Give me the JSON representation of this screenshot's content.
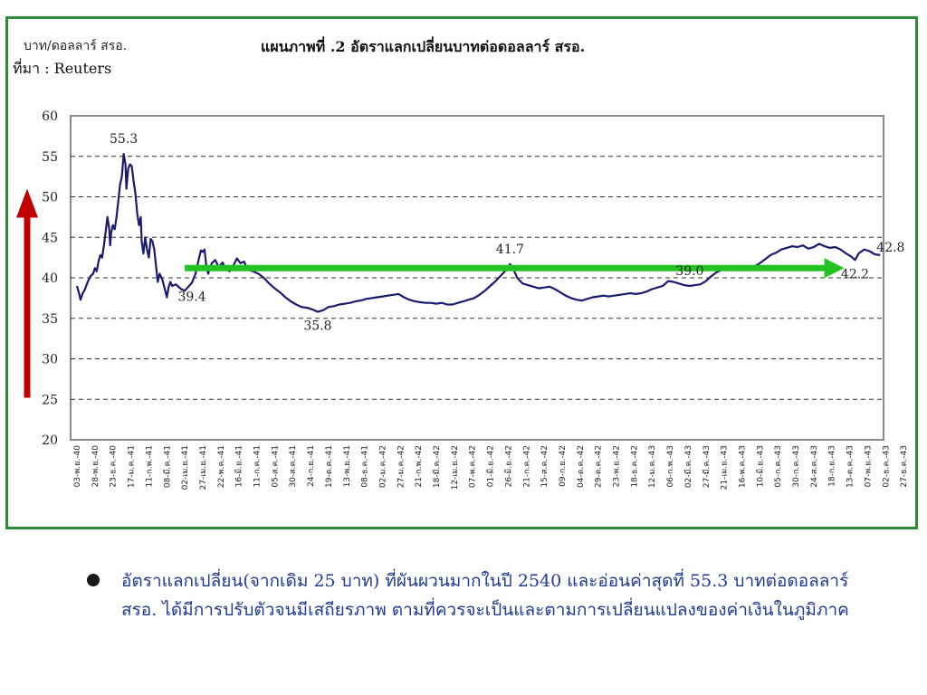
{
  "header": {
    "unit_label": "บาท/ดอลลาร์ สรอ.",
    "source_label": "ที่มา : Reuters",
    "title": "แผนภาพที่ .2 อัตราแลกเปลี่ยนบาทต่อดอลลาร์ สรอ."
  },
  "chart_data": {
    "type": "line",
    "title": "แผนภาพที่ .2 อัตราแลกเปลี่ยนบาทต่อดอลลาร์ สรอ.",
    "ylabel": "บาท/ดอลลาร์ สรอ.",
    "xlabel": "",
    "ylim": [
      20,
      60
    ],
    "yticks": [
      20,
      25,
      30,
      35,
      40,
      45,
      50,
      55,
      60
    ],
    "grid": "horizontal-dashed",
    "categories": [
      "03-พ.ย.-40",
      "28-พ.ย.-40",
      "23-ธ.ค.-40",
      "17-ม.ค.-41",
      "11-ก.พ.-41",
      "08-มี.ค.-41",
      "02-เม.ย.-41",
      "27-เม.ย.-41",
      "22-พ.ค.-41",
      "16-มิ.ย.-41",
      "11-ก.ค.-41",
      "05-ส.ค.-41",
      "30-ส.ค.-41",
      "24-ก.ย.-41",
      "19-ต.ค.-41",
      "13-พ.ย.-41",
      "08-ธ.ค.-41",
      "02-ม.ค.-42",
      "27-ม.ค.-42",
      "21-ก.พ.-42",
      "18-มี.ค.-42",
      "12-เม.ย.-42",
      "07-พ.ค.-42",
      "01-มิ.ย.-42",
      "26-มิ.ย.-42",
      "21-ก.ค.-42",
      "15-ส.ค.-42",
      "09-ก.ย.-42",
      "04-ต.ค.-42",
      "29-ต.ค.-42",
      "23-พ.ย.-42",
      "18-ธ.ค.-42",
      "12-ม.ค.-43",
      "06-ก.พ.-43",
      "02-มี.ค.-43",
      "27-มี.ค.-43",
      "21-เม.ย.-43",
      "16-พ.ค.-43",
      "10-มิ.ย.-43",
      "05-ก.ค.-43",
      "30-ก.ค.-43",
      "24-ส.ค.-43",
      "18-ก.ย.-43",
      "13-ต.ค.-43",
      "07-พ.ย.-43",
      "02-ธ.ค.-43",
      "27-ธ.ค.-43"
    ],
    "series": [
      {
        "values": [
          [
            0,
            39.0
          ],
          [
            0.1,
            38.2
          ],
          [
            0.2,
            37.3
          ],
          [
            0.3,
            38.0
          ],
          [
            0.45,
            38.6
          ],
          [
            0.6,
            39.5
          ],
          [
            0.75,
            40.2
          ],
          [
            0.9,
            40.5
          ],
          [
            1.0,
            41.2
          ],
          [
            1.1,
            40.8
          ],
          [
            1.2,
            42.0
          ],
          [
            1.3,
            42.8
          ],
          [
            1.4,
            42.5
          ],
          [
            1.5,
            44.0
          ],
          [
            1.6,
            45.8
          ],
          [
            1.7,
            47.5
          ],
          [
            1.8,
            46.0
          ],
          [
            1.85,
            44.0
          ],
          [
            1.9,
            45.5
          ],
          [
            2.0,
            46.5
          ],
          [
            2.1,
            46.0
          ],
          [
            2.2,
            47.5
          ],
          [
            2.3,
            49.5
          ],
          [
            2.4,
            51.5
          ],
          [
            2.5,
            52.5
          ],
          [
            2.6,
            55.3
          ],
          [
            2.7,
            54.0
          ],
          [
            2.75,
            51.0
          ],
          [
            2.85,
            53.5
          ],
          [
            2.95,
            54.0
          ],
          [
            3.05,
            53.8
          ],
          [
            3.15,
            52.0
          ],
          [
            3.25,
            50.5
          ],
          [
            3.35,
            48.0
          ],
          [
            3.45,
            46.5
          ],
          [
            3.55,
            47.5
          ],
          [
            3.6,
            44.5
          ],
          [
            3.7,
            43.0
          ],
          [
            3.8,
            45.0
          ],
          [
            3.9,
            43.5
          ],
          [
            4.0,
            42.5
          ],
          [
            4.1,
            44.8
          ],
          [
            4.2,
            44.5
          ],
          [
            4.3,
            43.5
          ],
          [
            4.4,
            41.5
          ],
          [
            4.5,
            39.5
          ],
          [
            4.6,
            40.5
          ],
          [
            4.75,
            39.8
          ],
          [
            4.9,
            38.5
          ],
          [
            5.0,
            37.6
          ],
          [
            5.1,
            38.8
          ],
          [
            5.2,
            39.5
          ],
          [
            5.3,
            39.0
          ],
          [
            5.5,
            39.2
          ],
          [
            5.8,
            38.6
          ],
          [
            6.0,
            38.4
          ],
          [
            6.2,
            38.9
          ],
          [
            6.4,
            39.4
          ],
          [
            6.6,
            40.5
          ],
          [
            6.8,
            42.5
          ],
          [
            6.9,
            43.4
          ],
          [
            7.0,
            43.2
          ],
          [
            7.1,
            43.5
          ],
          [
            7.2,
            41.5
          ],
          [
            7.3,
            40.5
          ],
          [
            7.5,
            41.8
          ],
          [
            7.7,
            42.2
          ],
          [
            7.9,
            41.3
          ],
          [
            8.1,
            41.9
          ],
          [
            8.3,
            41.0
          ],
          [
            8.5,
            40.8
          ],
          [
            8.7,
            41.5
          ],
          [
            8.9,
            42.4
          ],
          [
            9.1,
            41.8
          ],
          [
            9.3,
            42.0
          ],
          [
            9.5,
            41.0
          ],
          [
            9.8,
            40.8
          ],
          [
            10.1,
            40.5
          ],
          [
            10.4,
            40.0
          ],
          [
            10.7,
            39.3
          ],
          [
            11.0,
            38.7
          ],
          [
            11.3,
            38.2
          ],
          [
            11.6,
            37.6
          ],
          [
            11.9,
            37.1
          ],
          [
            12.2,
            36.7
          ],
          [
            12.5,
            36.4
          ],
          [
            12.8,
            36.3
          ],
          [
            13.1,
            36.1
          ],
          [
            13.4,
            35.8
          ],
          [
            13.7,
            36.0
          ],
          [
            14.0,
            36.4
          ],
          [
            14.3,
            36.5
          ],
          [
            14.6,
            36.7
          ],
          [
            14.9,
            36.8
          ],
          [
            15.2,
            36.9
          ],
          [
            15.5,
            37.1
          ],
          [
            15.8,
            37.2
          ],
          [
            16.1,
            37.4
          ],
          [
            16.4,
            37.5
          ],
          [
            16.7,
            37.6
          ],
          [
            17.0,
            37.7
          ],
          [
            17.3,
            37.8
          ],
          [
            17.6,
            37.9
          ],
          [
            17.9,
            38.0
          ],
          [
            18.2,
            37.6
          ],
          [
            18.5,
            37.3
          ],
          [
            18.8,
            37.1
          ],
          [
            19.1,
            37.0
          ],
          [
            19.4,
            36.9
          ],
          [
            19.7,
            36.9
          ],
          [
            20.0,
            36.8
          ],
          [
            20.3,
            36.9
          ],
          [
            20.6,
            36.7
          ],
          [
            20.9,
            36.7
          ],
          [
            21.2,
            36.9
          ],
          [
            21.5,
            37.1
          ],
          [
            21.8,
            37.3
          ],
          [
            22.1,
            37.5
          ],
          [
            22.4,
            37.9
          ],
          [
            22.7,
            38.4
          ],
          [
            23.0,
            39.0
          ],
          [
            23.3,
            39.6
          ],
          [
            23.6,
            40.3
          ],
          [
            23.9,
            41.0
          ],
          [
            24.1,
            41.7
          ],
          [
            24.3,
            41.0
          ],
          [
            24.5,
            40.0
          ],
          [
            24.8,
            39.3
          ],
          [
            25.1,
            39.1
          ],
          [
            25.4,
            38.9
          ],
          [
            25.7,
            38.7
          ],
          [
            26.0,
            38.8
          ],
          [
            26.3,
            38.9
          ],
          [
            26.6,
            38.6
          ],
          [
            26.9,
            38.2
          ],
          [
            27.2,
            37.8
          ],
          [
            27.5,
            37.5
          ],
          [
            27.8,
            37.3
          ],
          [
            28.1,
            37.2
          ],
          [
            28.4,
            37.4
          ],
          [
            28.7,
            37.6
          ],
          [
            29.0,
            37.7
          ],
          [
            29.3,
            37.8
          ],
          [
            29.6,
            37.7
          ],
          [
            29.9,
            37.8
          ],
          [
            30.2,
            37.9
          ],
          [
            30.5,
            38.0
          ],
          [
            30.8,
            38.1
          ],
          [
            31.1,
            38.0
          ],
          [
            31.4,
            38.1
          ],
          [
            31.7,
            38.3
          ],
          [
            32.0,
            38.6
          ],
          [
            32.3,
            38.8
          ],
          [
            32.6,
            39.0
          ],
          [
            32.9,
            39.6
          ],
          [
            33.2,
            39.5
          ],
          [
            33.5,
            39.3
          ],
          [
            33.8,
            39.1
          ],
          [
            34.1,
            39.0
          ],
          [
            34.4,
            39.1
          ],
          [
            34.7,
            39.2
          ],
          [
            35.0,
            39.6
          ],
          [
            35.3,
            40.2
          ],
          [
            35.6,
            40.7
          ],
          [
            35.9,
            41.0
          ],
          [
            36.2,
            41.2
          ],
          [
            36.5,
            41.4
          ],
          [
            36.8,
            41.2
          ],
          [
            37.1,
            41.0
          ],
          [
            37.4,
            41.1
          ],
          [
            37.7,
            41.4
          ],
          [
            38.0,
            41.8
          ],
          [
            38.3,
            42.3
          ],
          [
            38.6,
            42.8
          ],
          [
            38.9,
            43.1
          ],
          [
            39.2,
            43.5
          ],
          [
            39.5,
            43.7
          ],
          [
            39.8,
            43.9
          ],
          [
            40.1,
            43.8
          ],
          [
            40.4,
            44.0
          ],
          [
            40.7,
            43.6
          ],
          [
            41.0,
            43.8
          ],
          [
            41.3,
            44.2
          ],
          [
            41.6,
            43.9
          ],
          [
            41.9,
            43.7
          ],
          [
            42.2,
            43.8
          ],
          [
            42.5,
            43.5
          ],
          [
            42.8,
            43.0
          ],
          [
            43.1,
            42.6
          ],
          [
            43.3,
            42.2
          ],
          [
            43.5,
            43.0
          ],
          [
            43.8,
            43.5
          ],
          [
            44.1,
            43.3
          ],
          [
            44.4,
            42.9
          ],
          [
            44.7,
            42.8
          ]
        ]
      }
    ],
    "annotations": [
      {
        "text": "55.3",
        "x": 2.6,
        "y": 55.3,
        "position": "above"
      },
      {
        "text": "39.4",
        "x": 6.4,
        "y": 39.4,
        "position": "below"
      },
      {
        "text": "35.8",
        "x": 13.4,
        "y": 35.8,
        "position": "below"
      },
      {
        "text": "41.7",
        "x": 24.1,
        "y": 41.7,
        "position": "above"
      },
      {
        "text": "39.0",
        "x": 34.1,
        "y": 39.0,
        "position": "above"
      },
      {
        "text": "42.2",
        "x": 43.3,
        "y": 42.2,
        "position": "below"
      },
      {
        "text": "42.8",
        "x": 44.7,
        "y": 42.8,
        "position": "above-right"
      }
    ],
    "arrows": [
      {
        "color": "#c00000",
        "direction": "up",
        "from_y": 25.2,
        "to_y": 51.0
      },
      {
        "color": "#22c322",
        "direction": "right",
        "y": 41.2,
        "from_x": 6.0,
        "to_x": 42.7
      }
    ],
    "colors": {
      "line": "#1a1a6e",
      "frame": "#2e8b3a",
      "grid": "#333333"
    }
  },
  "bullet": {
    "text": "อัตราแลกเปลี่ยน(จากเดิม 25 บาท) ที่ผันผวนมากในปี 2540 และอ่อนค่าสุดที่ 55.3 บาทต่อดอลลาร์ สรอ. ได้มีการปรับตัวจนมีเสถียรภาพ ตามที่ควรจะเป็นและตามการเปลี่ยนแปลงของค่าเงินในภูมิภาค"
  }
}
